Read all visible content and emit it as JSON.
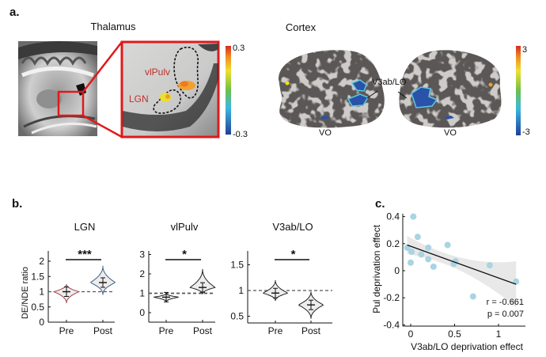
{
  "panel_a": {
    "letter": "a.",
    "thalamus": {
      "title": "Thalamus",
      "labels": [
        "vlPulv",
        "LGN"
      ],
      "colorbar": {
        "max": "0.3",
        "min": "-0.3"
      }
    },
    "cortex": {
      "title": "Cortex",
      "roi_label": "V3ab/LO",
      "vo_labels": [
        "VO",
        "VO"
      ],
      "colorbar": {
        "max": "3",
        "min": "-3"
      }
    },
    "colors": {
      "highlight_box": "#e0191b",
      "roi_text": "#c0302a"
    }
  },
  "panel_b": {
    "letter": "b.",
    "ylabel": "DE/NDE ratio"
  },
  "panel_c": {
    "letter": "c.",
    "stats": [
      "r = -0.661",
      "p = 0.007"
    ]
  },
  "chart_data": [
    {
      "type": "violin",
      "title": "LGN",
      "ylabel": "DE/NDE ratio",
      "categories": [
        "Pre",
        "Post"
      ],
      "yticks": [
        "0",
        "0.5",
        "1",
        "1.5",
        "2"
      ],
      "reference_line": 1,
      "significance": "***",
      "series": [
        {
          "category": "Pre",
          "center": 1.0,
          "min": 0.62,
          "max": 1.25,
          "color": "#a0454a"
        },
        {
          "category": "Post",
          "center": 1.3,
          "min": 0.9,
          "max": 1.85,
          "color": "#3f5f8a"
        }
      ]
    },
    {
      "type": "violin",
      "title": "vlPulv",
      "categories": [
        "Pre",
        "Post"
      ],
      "yticks": [
        "0",
        "1",
        "2",
        "3"
      ],
      "reference_line": 1,
      "significance": "*",
      "series": [
        {
          "category": "Pre",
          "center": 0.8,
          "min": 0.55,
          "max": 1.0,
          "color": "#222222"
        },
        {
          "category": "Post",
          "center": 1.3,
          "min": 0.95,
          "max": 2.25,
          "color": "#222222"
        }
      ]
    },
    {
      "type": "violin",
      "title": "V3ab/LO",
      "categories": [
        "Pre",
        "Post"
      ],
      "yticks": [
        "0.5",
        "1",
        "1.5"
      ],
      "reference_line": 1,
      "significance": "*",
      "series": [
        {
          "category": "Pre",
          "center": 0.95,
          "min": 0.8,
          "max": 1.2,
          "color": "#222222"
        },
        {
          "category": "Post",
          "center": 0.72,
          "min": 0.45,
          "max": 0.98,
          "color": "#222222"
        }
      ]
    },
    {
      "type": "scatter",
      "xlabel": "V3ab/LO deprivation effect",
      "ylabel": "Pul deprivation effect",
      "xticks": [
        "0",
        "0.5",
        "1"
      ],
      "yticks": [
        "-0.4",
        "-0.2",
        "0",
        "0.2",
        "0.4"
      ],
      "ylim": [
        -0.4,
        0.4
      ],
      "point_color": "#a9d4e2",
      "points": [
        [
          -0.04,
          0.17
        ],
        [
          0.03,
          0.4
        ],
        [
          0.08,
          0.25
        ],
        [
          0.01,
          0.14
        ],
        [
          0.0,
          0.06
        ],
        [
          0.12,
          0.12
        ],
        [
          0.2,
          0.17
        ],
        [
          0.2,
          0.085
        ],
        [
          0.26,
          0.03
        ],
        [
          0.42,
          0.19
        ],
        [
          0.51,
          0.07
        ],
        [
          0.49,
          0.05
        ],
        [
          0.71,
          -0.19
        ],
        [
          0.9,
          0.04
        ],
        [
          1.2,
          -0.08
        ]
      ],
      "fit_line": [
        [
          -0.04,
          0.19
        ],
        [
          1.2,
          -0.1
        ]
      ],
      "annotations": [
        "r = -0.661",
        "p = 0.007"
      ]
    }
  ]
}
